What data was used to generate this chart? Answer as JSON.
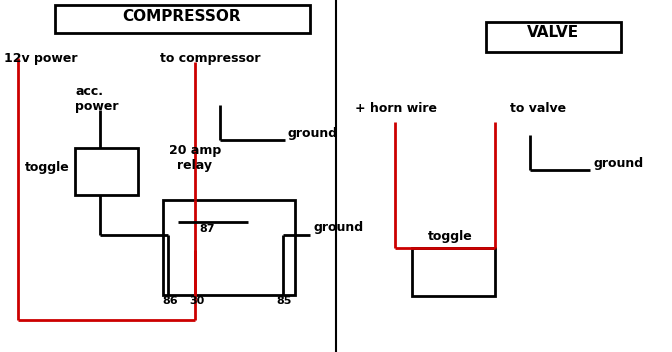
{
  "bg_color": "#ffffff",
  "red": "#cc0000",
  "blk": "#000000",
  "lw": 2.0,
  "compressor_title": "COMPRESSOR",
  "valve_title": "VALVE",
  "label_12v": "12v power",
  "label_acc": "acc.\npower",
  "label_to_compressor": "to compressor",
  "label_ground1": "ground",
  "label_20amp": "20 amp\nrelay",
  "label_ground2": "ground",
  "label_86": "86",
  "label_30": "30",
  "label_85": "85",
  "label_87": "87",
  "label_toggle1": "toggle",
  "label_horn_wire": "+ horn wire",
  "label_to_valve": "to valve",
  "label_ground3": "ground",
  "label_toggle2": "toggle",
  "fs_title": 11,
  "fs_label": 9,
  "fs_pin": 8
}
